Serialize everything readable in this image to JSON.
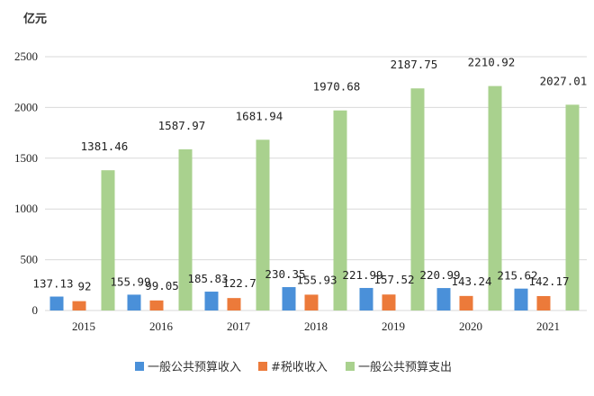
{
  "chart_data": {
    "type": "bar",
    "ylabel": "亿元",
    "ylim": [
      0,
      2500
    ],
    "yticks": [
      0,
      500,
      1000,
      1500,
      2000,
      2500
    ],
    "categories": [
      "2015",
      "2016",
      "2017",
      "2018",
      "2019",
      "2020",
      "2021"
    ],
    "series": [
      {
        "name": "一般公共预算收入",
        "color": "#4a90d9",
        "values": [
          137.13,
          155.99,
          185.83,
          230.35,
          221.99,
          220.99,
          215.62
        ],
        "labels": [
          "137.13",
          "155.99",
          "185.83",
          "230.35",
          "221.99",
          "220.99",
          "215.62"
        ]
      },
      {
        "name": "#税收收入",
        "color": "#ec7a3a",
        "values": [
          92,
          99.05,
          122.7,
          155.93,
          157.52,
          143.24,
          142.17
        ],
        "labels": [
          "92",
          "99.05",
          "122.7",
          "155.93",
          "157.52",
          "143.24",
          "142.17"
        ]
      },
      {
        "name": "一般公共预算支出",
        "color": "#a9d18e",
        "values": [
          1381.46,
          1587.97,
          1681.94,
          1970.68,
          2187.75,
          2210.92,
          2027.01
        ],
        "labels": [
          "1381.46",
          "1587.97",
          "1681.94",
          "1970.68",
          "2187.75",
          "2210.92",
          "2027.01"
        ]
      }
    ],
    "grid": true,
    "legend": "bottom"
  }
}
